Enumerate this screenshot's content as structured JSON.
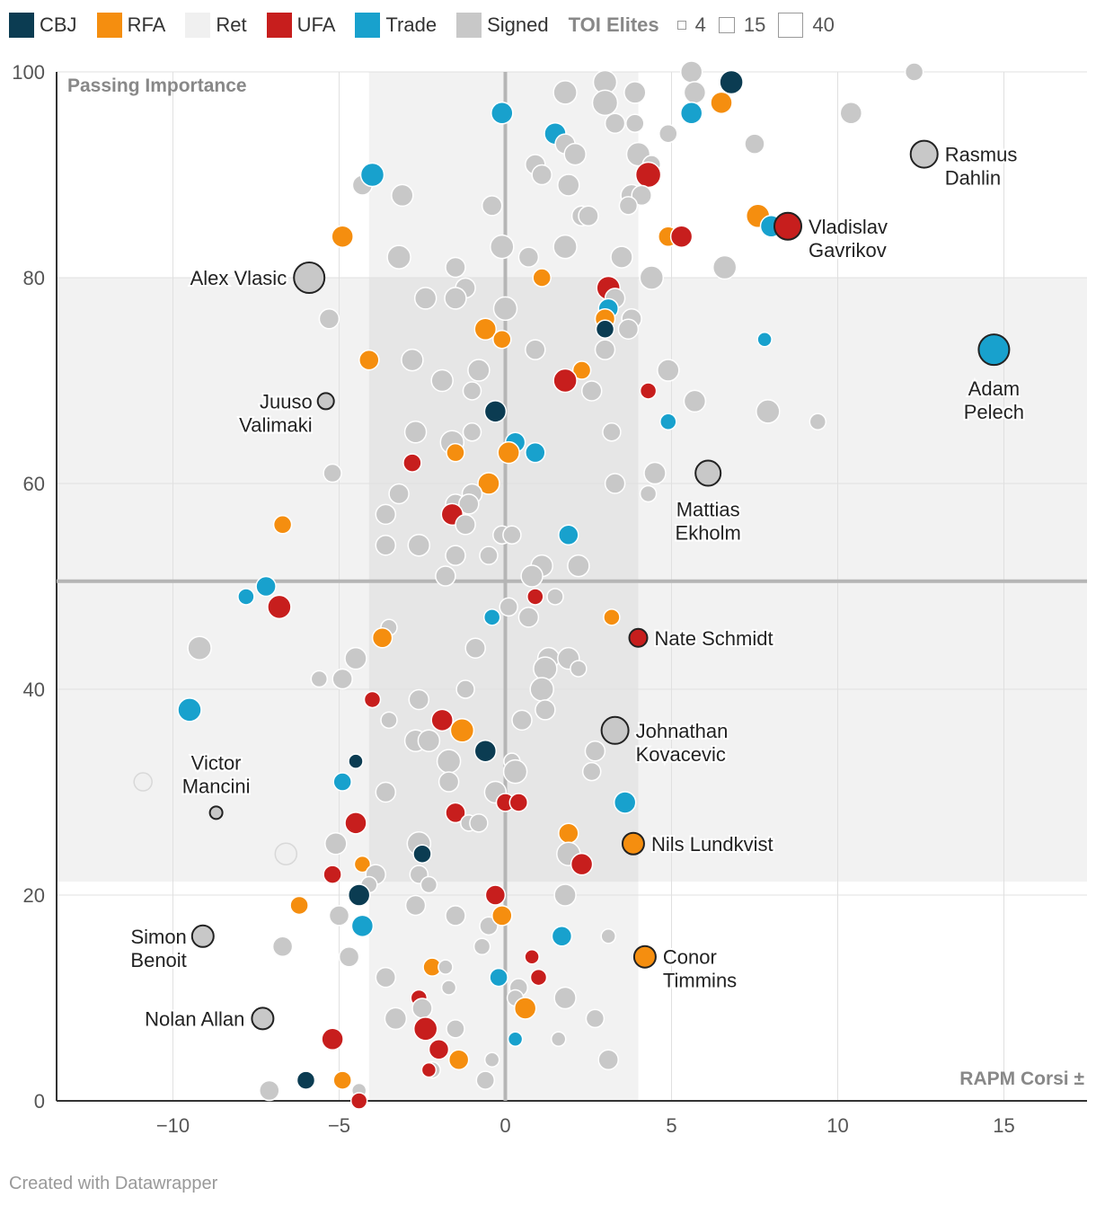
{
  "chart_data": {
    "type": "scatter",
    "xlabel": "RAPM Corsi ±",
    "ylabel": "Passing Importance",
    "xlim": [
      -13.5,
      17.5
    ],
    "ylim": [
      0,
      100
    ],
    "x_ticks": [
      -10,
      -5,
      0,
      5,
      10,
      15
    ],
    "x_tick_labels": [
      "−10",
      "−5",
      "0",
      "5",
      "10",
      "15"
    ],
    "y_ticks": [
      0,
      20,
      40,
      60,
      80,
      100
    ],
    "y_tick_labels": [
      "0",
      "20",
      "40",
      "60",
      "80",
      "100"
    ],
    "reference_lines": {
      "x": 0,
      "y": 50.5
    },
    "x_band": [
      -4.1,
      4.0
    ],
    "y_band": [
      21.3,
      80
    ],
    "legend": {
      "categories": [
        {
          "key": "CBJ",
          "label": "CBJ",
          "color": "#0b3c52"
        },
        {
          "key": "RFA",
          "label": "RFA",
          "color": "#f58e0f"
        },
        {
          "key": "Ret",
          "label": "Ret",
          "color": "#f0f0f0"
        },
        {
          "key": "UFA",
          "label": "UFA",
          "color": "#c71e1d"
        },
        {
          "key": "Trade",
          "label": "Trade",
          "color": "#18a1cd"
        },
        {
          "key": "Signed",
          "label": "Signed",
          "color": "#c8c8c8"
        }
      ],
      "size_title": "TOI Elites",
      "sizes": [
        {
          "value": 4,
          "label": "4"
        },
        {
          "value": 15,
          "label": "15"
        },
        {
          "value": 40,
          "label": "40"
        }
      ]
    },
    "labeled_points": [
      {
        "label": [
          "Rasmus",
          "Dahlin"
        ],
        "x": 12.6,
        "y": 92,
        "size": 30,
        "cat": "Signed",
        "side": "right"
      },
      {
        "label": [
          "Vladislav",
          "Gavrikov"
        ],
        "x": 8.5,
        "y": 85,
        "size": 30,
        "cat": "UFA",
        "side": "right"
      },
      {
        "label": [
          "Alex Vlasic"
        ],
        "x": -5.9,
        "y": 80,
        "size": 34,
        "cat": "Signed",
        "side": "left"
      },
      {
        "label": [
          "Adam",
          "Pelech"
        ],
        "x": 14.7,
        "y": 73,
        "size": 34,
        "cat": "Trade",
        "side": "below"
      },
      {
        "label": [
          "Juuso",
          "Valimaki"
        ],
        "x": -5.4,
        "y": 68,
        "size": 18,
        "cat": "Signed",
        "side": "leftTwo"
      },
      {
        "label": [
          "Mattias",
          "Ekholm"
        ],
        "x": 6.1,
        "y": 61,
        "size": 28,
        "cat": "Signed",
        "side": "below"
      },
      {
        "label": [
          "Nate Schmidt"
        ],
        "x": 4.0,
        "y": 45,
        "size": 20,
        "cat": "UFA",
        "side": "right"
      },
      {
        "label": [
          "Johnathan",
          "Kovacevic"
        ],
        "x": 3.3,
        "y": 36,
        "size": 30,
        "cat": "Signed",
        "side": "right"
      },
      {
        "label": [
          "Victor",
          "Mancini"
        ],
        "x": -8.7,
        "y": 28,
        "size": 14,
        "cat": "Signed",
        "side": "above"
      },
      {
        "label": [
          "Nils Lundkvist"
        ],
        "x": 3.85,
        "y": 25,
        "size": 24,
        "cat": "RFA",
        "side": "right"
      },
      {
        "label": [
          "Simon",
          "Benoit"
        ],
        "x": -9.1,
        "y": 16,
        "size": 24,
        "cat": "Signed",
        "side": "leftTwo"
      },
      {
        "label": [
          "Conor",
          "Timmins"
        ],
        "x": 4.2,
        "y": 14,
        "size": 24,
        "cat": "RFA",
        "side": "right"
      },
      {
        "label": [
          "Nolan Allan"
        ],
        "x": -7.3,
        "y": 8,
        "size": 24,
        "cat": "Signed",
        "side": "left"
      }
    ],
    "points": [
      [
        6.8,
        99,
        "CBJ",
        26
      ],
      [
        5.6,
        100,
        "Signed",
        24
      ],
      [
        12.3,
        100,
        "Signed",
        20
      ],
      [
        3,
        99,
        "Signed",
        26
      ],
      [
        1.8,
        98,
        "Signed",
        26
      ],
      [
        3.9,
        98,
        "Signed",
        24
      ],
      [
        5.7,
        98,
        "Signed",
        24
      ],
      [
        3,
        97,
        "Signed",
        28
      ],
      [
        6.5,
        97,
        "RFA",
        24
      ],
      [
        -0.1,
        96,
        "Trade",
        24
      ],
      [
        5.6,
        96,
        "Trade",
        24
      ],
      [
        10.4,
        96,
        "Signed",
        24
      ],
      [
        3.3,
        95,
        "Signed",
        22
      ],
      [
        3.9,
        95,
        "Signed",
        20
      ],
      [
        1.5,
        94,
        "Trade",
        24
      ],
      [
        4.9,
        94,
        "Signed",
        20
      ],
      [
        1.8,
        93,
        "Signed",
        22
      ],
      [
        7.5,
        93,
        "Signed",
        22
      ],
      [
        2.1,
        92,
        "Signed",
        24
      ],
      [
        4,
        92,
        "Signed",
        26
      ],
      [
        0.9,
        91,
        "Signed",
        22
      ],
      [
        4.4,
        91,
        "Signed",
        20
      ],
      [
        1.1,
        90,
        "Signed",
        22
      ],
      [
        4.3,
        90,
        "UFA",
        28
      ],
      [
        -4.3,
        89,
        "Signed",
        22
      ],
      [
        -4,
        90,
        "Trade",
        26
      ],
      [
        1.9,
        89,
        "Signed",
        24
      ],
      [
        -3.1,
        88,
        "Signed",
        24
      ],
      [
        3.8,
        88,
        "Signed",
        24
      ],
      [
        4.1,
        88,
        "Signed",
        22
      ],
      [
        -0.4,
        87,
        "Signed",
        22
      ],
      [
        3.7,
        87,
        "Signed",
        20
      ],
      [
        2.3,
        86,
        "Signed",
        22
      ],
      [
        2.5,
        86,
        "Signed",
        22
      ],
      [
        7.6,
        86,
        "RFA",
        26
      ],
      [
        8,
        85,
        "Trade",
        24
      ],
      [
        -4.9,
        84,
        "RFA",
        24
      ],
      [
        4.9,
        84,
        "RFA",
        22
      ],
      [
        5.3,
        84,
        "UFA",
        24
      ],
      [
        -0.1,
        83,
        "Signed",
        26
      ],
      [
        1.8,
        83,
        "Signed",
        26
      ],
      [
        -3.2,
        82,
        "Signed",
        26
      ],
      [
        0.7,
        82,
        "Signed",
        22
      ],
      [
        3.5,
        82,
        "Signed",
        24
      ],
      [
        -1.5,
        81,
        "Signed",
        22
      ],
      [
        6.6,
        81,
        "Signed",
        26
      ],
      [
        1.1,
        80,
        "RFA",
        20
      ],
      [
        4.4,
        80,
        "Signed",
        26
      ],
      [
        -1.2,
        79,
        "Signed",
        22
      ],
      [
        3.1,
        79,
        "UFA",
        26
      ],
      [
        -2.4,
        78,
        "Signed",
        24
      ],
      [
        -1.5,
        78,
        "Signed",
        24
      ],
      [
        3.3,
        78,
        "Signed",
        22
      ],
      [
        0,
        77,
        "Signed",
        26
      ],
      [
        3.1,
        77,
        "Trade",
        22
      ],
      [
        3,
        76,
        "RFA",
        22
      ],
      [
        -5.3,
        76,
        "Signed",
        22
      ],
      [
        3.8,
        76,
        "Signed",
        22
      ],
      [
        3,
        75,
        "CBJ",
        20
      ],
      [
        3.7,
        75,
        "Signed",
        22
      ],
      [
        -0.6,
        75,
        "RFA",
        24
      ],
      [
        -0.1,
        74,
        "RFA",
        20
      ],
      [
        7.8,
        74,
        "Trade",
        16
      ],
      [
        0.9,
        73,
        "Signed",
        22
      ],
      [
        3,
        73,
        "Signed",
        22
      ],
      [
        -4.1,
        72,
        "RFA",
        22
      ],
      [
        -2.8,
        72,
        "Signed",
        24
      ],
      [
        2.3,
        71,
        "RFA",
        20
      ],
      [
        -0.8,
        71,
        "Signed",
        24
      ],
      [
        4.9,
        71,
        "Signed",
        24
      ],
      [
        -1.9,
        70,
        "Signed",
        24
      ],
      [
        1.8,
        70,
        "UFA",
        26
      ],
      [
        2.6,
        69,
        "Signed",
        22
      ],
      [
        4.3,
        69,
        "UFA",
        18
      ],
      [
        -1,
        69,
        "Signed",
        20
      ],
      [
        5.7,
        68,
        "Signed",
        24
      ],
      [
        -0.3,
        67,
        "CBJ",
        24
      ],
      [
        7.9,
        67,
        "Signed",
        26
      ],
      [
        4.9,
        66,
        "Trade",
        18
      ],
      [
        9.4,
        66,
        "Signed",
        18
      ],
      [
        -2.7,
        65,
        "Signed",
        24
      ],
      [
        -1,
        65,
        "Signed",
        20
      ],
      [
        3.2,
        65,
        "Signed",
        20
      ],
      [
        -1.6,
        64,
        "Signed",
        26
      ],
      [
        0.3,
        64,
        "Trade",
        22
      ],
      [
        0.1,
        63,
        "RFA",
        24
      ],
      [
        0.9,
        63,
        "Trade",
        22
      ],
      [
        -1.5,
        63,
        "RFA",
        20
      ],
      [
        -2.8,
        62,
        "UFA",
        20
      ],
      [
        -5.2,
        61,
        "Signed",
        20
      ],
      [
        4.5,
        61,
        "Signed",
        24
      ],
      [
        3.3,
        60,
        "Signed",
        22
      ],
      [
        -0.5,
        60,
        "RFA",
        24
      ],
      [
        -3.2,
        59,
        "Signed",
        22
      ],
      [
        -1,
        59,
        "Signed",
        22
      ],
      [
        4.3,
        59,
        "Signed",
        18
      ],
      [
        -1.5,
        58,
        "Signed",
        22
      ],
      [
        -1.1,
        58,
        "Signed",
        22
      ],
      [
        -3.6,
        57,
        "Signed",
        22
      ],
      [
        -1.6,
        57,
        "UFA",
        24
      ],
      [
        -6.7,
        56,
        "RFA",
        20
      ],
      [
        -1.2,
        56,
        "Signed",
        22
      ],
      [
        1.9,
        55,
        "Trade",
        22
      ],
      [
        -0.1,
        55,
        "Signed",
        20
      ],
      [
        0.2,
        55,
        "Signed",
        20
      ],
      [
        -3.6,
        54,
        "Signed",
        22
      ],
      [
        -2.6,
        54,
        "Signed",
        24
      ],
      [
        -1.5,
        53,
        "Signed",
        22
      ],
      [
        -0.5,
        53,
        "Signed",
        20
      ],
      [
        1.1,
        52,
        "Signed",
        24
      ],
      [
        2.2,
        52,
        "Signed",
        24
      ],
      [
        -1.8,
        51,
        "Signed",
        22
      ],
      [
        0.8,
        51,
        "Signed",
        24
      ],
      [
        -7.2,
        50,
        "Trade",
        22
      ],
      [
        -7.8,
        49,
        "Trade",
        18
      ],
      [
        0.9,
        49,
        "UFA",
        18
      ],
      [
        1.5,
        49,
        "Signed",
        18
      ],
      [
        -6.8,
        48,
        "UFA",
        26
      ],
      [
        0.1,
        48,
        "Signed",
        20
      ],
      [
        -0.4,
        47,
        "Trade",
        18
      ],
      [
        0.7,
        47,
        "Signed",
        22
      ],
      [
        3.2,
        47,
        "RFA",
        18
      ],
      [
        -3.5,
        46,
        "Signed",
        18
      ],
      [
        -9.2,
        44,
        "Signed",
        26
      ],
      [
        -3.7,
        45,
        "RFA",
        22
      ],
      [
        -0.9,
        44,
        "Signed",
        22
      ],
      [
        1.3,
        43,
        "Signed",
        24
      ],
      [
        1.9,
        43,
        "Signed",
        24
      ],
      [
        -4.5,
        43,
        "Signed",
        24
      ],
      [
        1.2,
        42,
        "Signed",
        26
      ],
      [
        2.2,
        42,
        "Signed",
        18
      ],
      [
        -5.6,
        41,
        "Signed",
        18
      ],
      [
        -4.9,
        41,
        "Signed",
        22
      ],
      [
        -1.2,
        40,
        "Signed",
        20
      ],
      [
        1.1,
        40,
        "Signed",
        26
      ],
      [
        -4,
        39,
        "UFA",
        18
      ],
      [
        -2.6,
        39,
        "Signed",
        22
      ],
      [
        -9.5,
        38,
        "Trade",
        26
      ],
      [
        1.2,
        38,
        "Signed",
        22
      ],
      [
        -3.5,
        37,
        "Signed",
        18
      ],
      [
        0.5,
        37,
        "Signed",
        22
      ],
      [
        -1.9,
        37,
        "UFA",
        24
      ],
      [
        -1.3,
        36,
        "RFA",
        26
      ],
      [
        -2.7,
        35,
        "Signed",
        24
      ],
      [
        -2.3,
        35,
        "Signed",
        24
      ],
      [
        2.7,
        34,
        "Signed",
        22
      ],
      [
        -0.6,
        34,
        "CBJ",
        24
      ],
      [
        -1.7,
        33,
        "Signed",
        26
      ],
      [
        0.2,
        33,
        "Signed",
        18
      ],
      [
        -4.5,
        33,
        "CBJ",
        16
      ],
      [
        0.3,
        32,
        "Signed",
        26
      ],
      [
        2.6,
        32,
        "Signed",
        20
      ],
      [
        -10.9,
        31,
        "Ret",
        20
      ],
      [
        -4.9,
        31,
        "Trade",
        20
      ],
      [
        -1.7,
        31,
        "Signed",
        22
      ],
      [
        -3.6,
        30,
        "Signed",
        22
      ],
      [
        -0.3,
        30,
        "Signed",
        24
      ],
      [
        0,
        29,
        "UFA",
        20
      ],
      [
        0.4,
        29,
        "UFA",
        20
      ],
      [
        3.6,
        29,
        "Trade",
        24
      ],
      [
        -1.5,
        28,
        "UFA",
        22
      ],
      [
        -1.1,
        27,
        "Signed",
        18
      ],
      [
        -0.8,
        27,
        "Signed",
        20
      ],
      [
        -4.5,
        27,
        "UFA",
        24
      ],
      [
        1.9,
        26,
        "RFA",
        22
      ],
      [
        -2.6,
        25,
        "Signed",
        26
      ],
      [
        -5.1,
        25,
        "Signed",
        24
      ],
      [
        -2.5,
        24,
        "CBJ",
        20
      ],
      [
        1.9,
        24,
        "Signed",
        26
      ],
      [
        -6.6,
        24,
        "Ret",
        24
      ],
      [
        2.3,
        23,
        "UFA",
        24
      ],
      [
        -4.3,
        23,
        "RFA",
        18
      ],
      [
        -3.9,
        22,
        "Signed",
        22
      ],
      [
        -2.6,
        22,
        "Signed",
        20
      ],
      [
        -5.2,
        22,
        "UFA",
        20
      ],
      [
        -4.1,
        21,
        "Signed",
        18
      ],
      [
        -2.3,
        21,
        "Signed",
        18
      ],
      [
        1.8,
        20,
        "Signed",
        24
      ],
      [
        -4.4,
        20,
        "CBJ",
        24
      ],
      [
        -0.3,
        20,
        "UFA",
        22
      ],
      [
        -6.2,
        19,
        "RFA",
        20
      ],
      [
        -2.7,
        19,
        "Signed",
        22
      ],
      [
        -5,
        18,
        "Signed",
        22
      ],
      [
        -1.5,
        18,
        "Signed",
        22
      ],
      [
        -0.5,
        17,
        "Signed",
        20
      ],
      [
        -0.1,
        18,
        "RFA",
        22
      ],
      [
        -4.3,
        17,
        "Trade",
        24
      ],
      [
        1.7,
        16,
        "Trade",
        22
      ],
      [
        3.1,
        16,
        "Signed",
        16
      ],
      [
        -6.7,
        15,
        "Signed",
        22
      ],
      [
        -0.7,
        15,
        "Signed",
        18
      ],
      [
        -4.7,
        14,
        "Signed",
        22
      ],
      [
        0.8,
        14,
        "UFA",
        16
      ],
      [
        -2.2,
        13,
        "RFA",
        20
      ],
      [
        -1.8,
        13,
        "Signed",
        16
      ],
      [
        -3.6,
        12,
        "Signed",
        22
      ],
      [
        -0.2,
        12,
        "Trade",
        20
      ],
      [
        1,
        12,
        "UFA",
        18
      ],
      [
        -1.7,
        11,
        "Signed",
        16
      ],
      [
        0.4,
        11,
        "Signed",
        20
      ],
      [
        0.3,
        10,
        "Signed",
        18
      ],
      [
        -2.6,
        10,
        "UFA",
        18
      ],
      [
        1.8,
        10,
        "Signed",
        24
      ],
      [
        -2.5,
        9,
        "Signed",
        22
      ],
      [
        0.6,
        9,
        "RFA",
        24
      ],
      [
        -3.3,
        8,
        "Signed",
        24
      ],
      [
        2.7,
        8,
        "Signed",
        20
      ],
      [
        -2.4,
        7,
        "UFA",
        26
      ],
      [
        -1.5,
        7,
        "Signed",
        20
      ],
      [
        -5.2,
        6,
        "UFA",
        24
      ],
      [
        0.3,
        6,
        "Trade",
        16
      ],
      [
        1.6,
        6,
        "Signed",
        16
      ],
      [
        -2,
        5,
        "UFA",
        22
      ],
      [
        -1.4,
        4,
        "RFA",
        22
      ],
      [
        -0.4,
        4,
        "Signed",
        16
      ],
      [
        3.1,
        4,
        "Signed",
        22
      ],
      [
        -2.2,
        3,
        "Signed",
        18
      ],
      [
        -2.3,
        3,
        "UFA",
        16
      ],
      [
        -6,
        2,
        "CBJ",
        20
      ],
      [
        -4.9,
        2,
        "RFA",
        20
      ],
      [
        -0.6,
        2,
        "Signed",
        20
      ],
      [
        -7.1,
        1,
        "Signed",
        22
      ],
      [
        -4.4,
        1,
        "Signed",
        16
      ],
      [
        -4.4,
        0,
        "UFA",
        18
      ]
    ]
  },
  "footer": {
    "credit": "Created with Datawrapper"
  }
}
